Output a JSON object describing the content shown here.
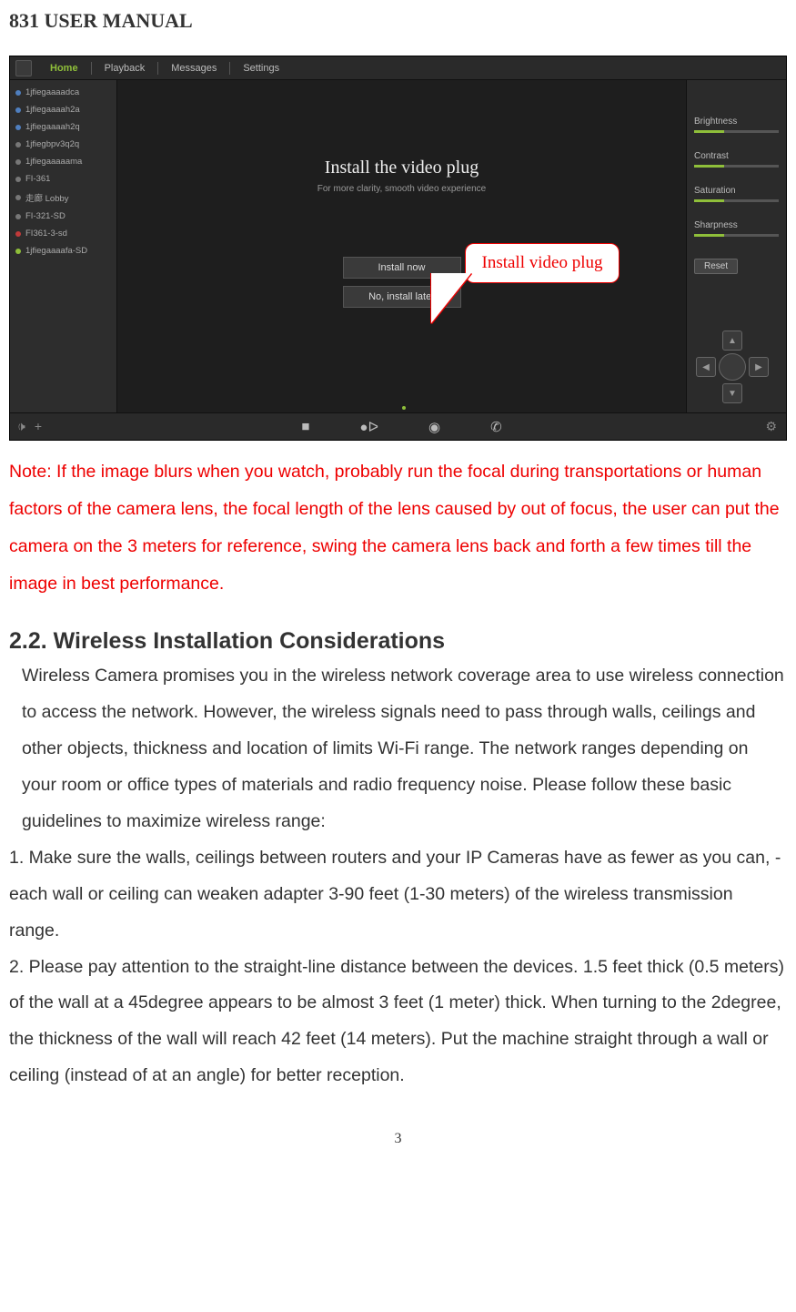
{
  "doc": {
    "title": "831 USER MANUAL",
    "page_number": "3"
  },
  "app": {
    "tabs": {
      "home": "Home",
      "playback": "Playback",
      "messages": "Messages",
      "settings": "Settings"
    },
    "cameras": [
      {
        "name": "1jfiegaaaadca",
        "dot": "dot-b"
      },
      {
        "name": "1jfiegaaaah2a",
        "dot": "dot-b"
      },
      {
        "name": "1jfiegaaaah2q",
        "dot": "dot-b"
      },
      {
        "name": "1jfiegbpv3q2q",
        "dot": "dot-g"
      },
      {
        "name": "1jfiegaaaaama",
        "dot": "dot-g"
      },
      {
        "name": "FI-361",
        "dot": "dot-g"
      },
      {
        "name": "走廊 Lobby",
        "dot": "dot-g"
      },
      {
        "name": "FI-321-SD",
        "dot": "dot-g"
      },
      {
        "name": "FI361-3-sd",
        "dot": "dot-r"
      },
      {
        "name": "1jfiegaaaafa-SD",
        "dot": "dot-a"
      }
    ],
    "install": {
      "title": "Install the video plug",
      "subtitle": "For more clarity, smooth video experience",
      "install_now": "Install now",
      "install_later": "No, install later"
    },
    "right": {
      "brightness": "Brightness",
      "contrast": "Contrast",
      "saturation": "Saturation",
      "sharpness": "Sharpness",
      "reset": "Reset"
    },
    "callout": "Install video plug",
    "bottom_icons": {
      "stop": "■",
      "record": "●ᐅ",
      "camera": "◉",
      "phone": "✆",
      "speaker": "🕩",
      "plus": "+",
      "gear": "⚙"
    }
  },
  "text": {
    "note": "Note: If the image blurs when you watch, probably run the focal during transportations or human factors of the camera lens, the focal length of the lens caused by out of focus, the user can put the camera on the 3 meters for reference, swing the camera lens back and forth a few times till the image in best performance.",
    "section_heading": "2.2. Wireless Installation Considerations",
    "intro": "Wireless Camera promises you in the wireless network coverage area to use wireless connection to access the network. However, the wireless signals need to pass through walls, ceilings and other objects, thickness and location of limits Wi-Fi range. The network ranges depending on your room or office types of materials and radio frequency noise. Please follow these basic guidelines to maximize wireless range:",
    "item1": "1. Make sure the walls, ceilings between routers and your IP Cameras have as fewer as you can, - each wall or ceiling can weaken adapter 3-90 feet (1-30 meters) of the wireless transmission range.",
    "item2": "2. Please pay attention to the straight-line distance between the devices. 1.5 feet thick (0.5 meters) of the wall at a 45degree appears to be almost 3 feet (1 meter) thick. When turning to the 2degree, the thickness of the wall will reach 42 feet (14 meters). Put the machine straight through a wall or ceiling (instead of at an angle) for better reception."
  },
  "colors": {
    "note_red": "#e60000",
    "accent_green": "#8fbf3a"
  }
}
